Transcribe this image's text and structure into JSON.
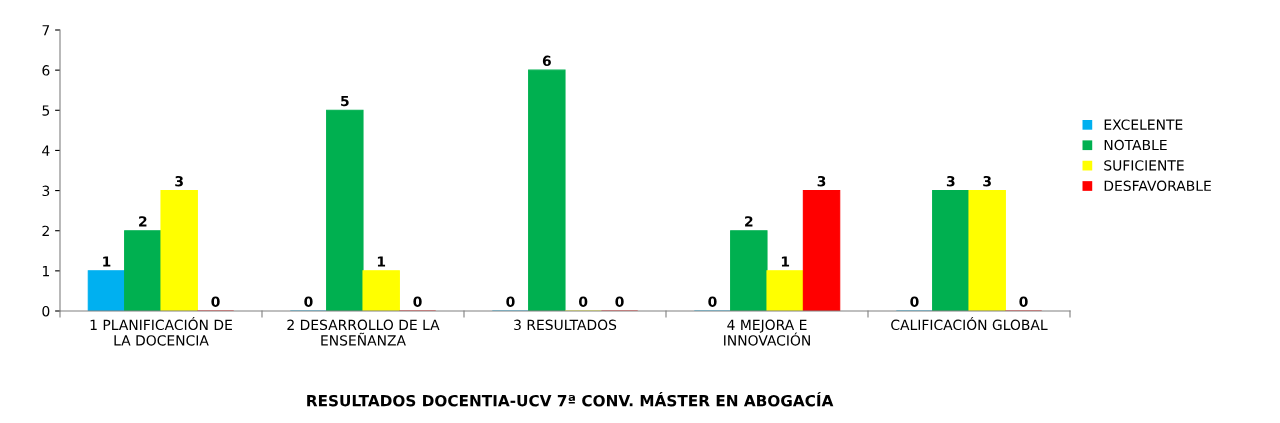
{
  "chart_data": {
    "type": "bar",
    "title": "RESULTADOS DOCENTIA-UCV 7ª CONV. MÁSTER EN ABOGACÍA",
    "categories": [
      "1 PLANIFICACIÓN DE LA DOCENCIA",
      "2 DESARROLLO DE LA ENSEÑANZA",
      "3 RESULTADOS",
      "4 MEJORA E INNOVACIÓN",
      "CALIFICACIÓN GLOBAL"
    ],
    "series": [
      {
        "name": "EXCELENTE",
        "color": "#00b0f0",
        "values": [
          1,
          0,
          0,
          0,
          0
        ]
      },
      {
        "name": "NOTABLE",
        "color": "#00b050",
        "values": [
          2,
          5,
          6,
          2,
          3
        ]
      },
      {
        "name": "SUFICIENTE",
        "color": "#ffff00",
        "values": [
          3,
          1,
          0,
          1,
          3
        ]
      },
      {
        "name": "DESFAVORABLE",
        "color": "#ff0000",
        "values": [
          0,
          0,
          0,
          3,
          0
        ]
      }
    ],
    "ylim": [
      0,
      7
    ],
    "yticks": [
      0,
      1,
      2,
      3,
      4,
      5,
      6,
      7
    ],
    "grid": false,
    "legend": "right",
    "data_labels": true
  }
}
